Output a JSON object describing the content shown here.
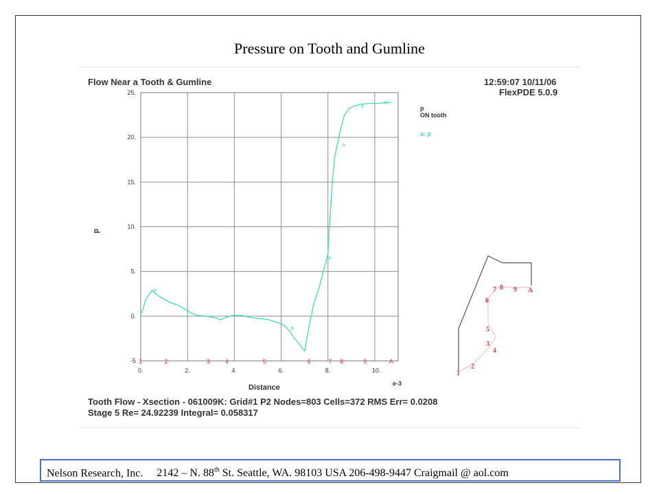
{
  "slide_title": "Pressure on Tooth and Gumline",
  "panel": {
    "plot_title": "Flow Near a Tooth & Gumline",
    "timestamp": "12:59:07 10/11/06",
    "software": "FlexPDE 5.0.9",
    "legend_var": "p",
    "legend_sub": "ON tooth",
    "legend_entry": "a: p",
    "x_exponent": "e-3",
    "info_line1": "Tooth Flow - Xsection - 061009K:  Grid#1  P2  Nodes=803  Cells=372  RMS Err= 0.0208",
    "info_line2": "Stage 5  Re=  24.92239   Integral=  0.058317"
  },
  "footer": {
    "org": "Nelson Research, Inc.",
    "addr_pre": "2142 – N. 88",
    "addr_sup": "th",
    "addr_post": " St. Seattle, WA. 98103  USA  206-498-9447   Craigmail @ aol.com"
  },
  "colors": {
    "curve": "#44d9b8",
    "marker": "#e8333a",
    "outline": "#555555",
    "grid": "#888888"
  },
  "chart_data": {
    "type": "line",
    "title": "Flow Near a Tooth & Gumline",
    "xlabel": "Distance",
    "ylabel": "p",
    "xlim": [
      0,
      11
    ],
    "ylim": [
      -5,
      25
    ],
    "x_ticks": [
      0,
      2,
      4,
      6,
      8,
      10
    ],
    "x_tick_labels": [
      "0.",
      "2.",
      "4.",
      "6.",
      "8.",
      "10."
    ],
    "y_ticks": [
      -5,
      0,
      5,
      10,
      15,
      20,
      25
    ],
    "y_tick_labels": [
      "-5",
      "0.",
      "5.",
      "10.",
      "15.",
      "20.",
      "25."
    ],
    "grid": true,
    "series": [
      {
        "name": "p",
        "x": [
          0.0,
          0.1,
          0.2,
          0.3,
          0.4,
          0.5,
          0.6,
          0.7,
          0.8,
          1.0,
          1.2,
          1.4,
          1.6,
          1.8,
          2.0,
          2.2,
          2.4,
          2.6,
          2.8,
          3.0,
          3.2,
          3.4,
          3.6,
          3.8,
          4.0,
          4.2,
          4.4,
          4.6,
          4.8,
          5.0,
          5.2,
          5.4,
          5.6,
          5.8,
          6.0,
          6.2,
          6.4,
          6.6,
          6.8,
          7.0,
          7.1,
          7.2,
          7.4,
          7.6,
          7.8,
          8.0,
          8.05,
          8.1,
          8.2,
          8.3,
          8.5,
          8.7,
          8.9,
          9.1,
          9.4,
          9.8,
          10.2,
          10.5,
          10.7
        ],
        "y": [
          0.2,
          0.8,
          1.8,
          2.2,
          2.6,
          2.9,
          2.6,
          2.4,
          2.2,
          1.9,
          1.6,
          1.4,
          1.2,
          0.9,
          0.6,
          0.3,
          0.1,
          0.05,
          0.0,
          -0.1,
          -0.2,
          -0.4,
          -0.2,
          0.0,
          0.1,
          0.1,
          0.05,
          -0.1,
          -0.2,
          -0.25,
          -0.3,
          -0.35,
          -0.5,
          -0.7,
          -0.8,
          -1.2,
          -1.8,
          -2.6,
          -3.2,
          -3.9,
          -2.5,
          -1.0,
          1.5,
          3.0,
          5.0,
          7.0,
          9.5,
          11.5,
          15.5,
          18.0,
          20.5,
          22.5,
          23.2,
          23.5,
          23.7,
          23.8,
          23.8,
          23.9,
          23.9
        ]
      }
    ],
    "curve_labels": [
      {
        "text": "a",
        "x": 0.55,
        "y": 2.7
      },
      {
        "text": "a",
        "x": 6.4,
        "y": -1.5
      },
      {
        "text": "a",
        "x": 8.0,
        "y": 6.3
      },
      {
        "text": "a",
        "x": 8.6,
        "y": 19.0
      },
      {
        "text": "a",
        "x": 9.4,
        "y": 23.3
      },
      {
        "text": "a",
        "x": 10.4,
        "y": 23.7
      }
    ],
    "node_markers": [
      {
        "label": "1",
        "x": 0.0
      },
      {
        "label": "2",
        "x": 1.1
      },
      {
        "label": "3",
        "x": 2.9
      },
      {
        "label": "4",
        "x": 3.7
      },
      {
        "label": "5",
        "x": 5.3
      },
      {
        "label": "6",
        "x": 7.2
      },
      {
        "label": "7",
        "x": 8.1
      },
      {
        "label": "8",
        "x": 8.6
      },
      {
        "label": "9",
        "x": 9.6
      },
      {
        "label": "A",
        "x": 10.7
      }
    ],
    "inset_labels": [
      "1",
      "2",
      "3",
      "4",
      "5",
      "6",
      "7",
      "8",
      "9",
      "A"
    ]
  }
}
